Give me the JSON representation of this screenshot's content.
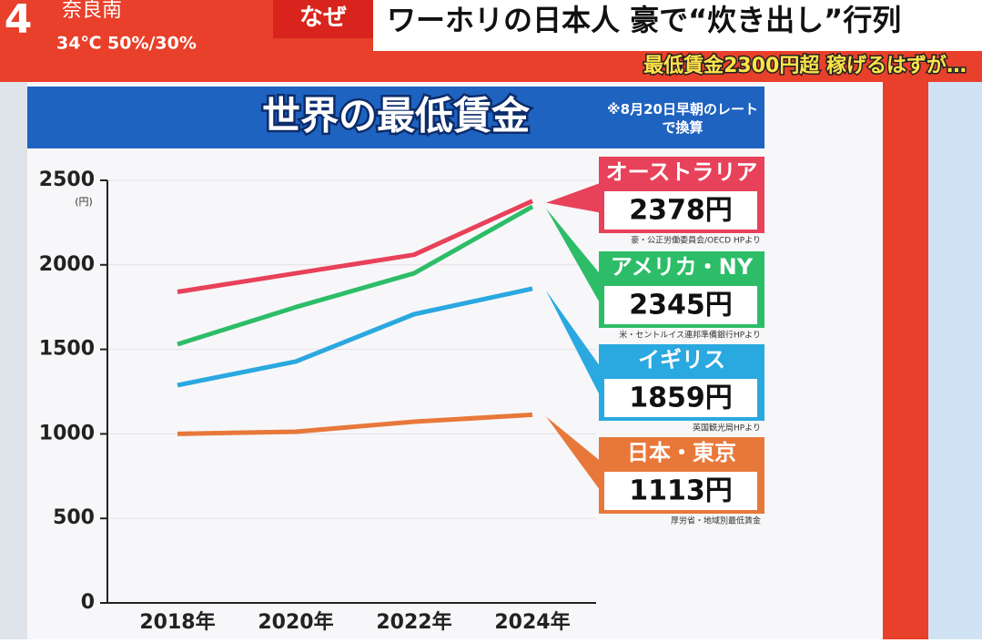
{
  "header": {
    "channel": "4",
    "location": "奈良南",
    "temperature": "34℃",
    "precipitation": "50%/30%",
    "tag": "なぜ",
    "headline": "ワーホリの日本人 豪で“炊き出し”行列",
    "subheadline": "最低賃金2300円超 稼げるはずが…"
  },
  "chart_data": {
    "type": "line",
    "title": "世界の最低賃金",
    "note": "※8月20日早朝のレートで換算",
    "y_unit": "(円)",
    "categories": [
      "2018年",
      "2020年",
      "2022年",
      "2024年"
    ],
    "series": [
      {
        "name": "オーストラリア",
        "color": "#e8415a",
        "values": [
          1840,
          1950,
          2060,
          2378
        ],
        "value_labels": [
          null,
          null,
          null,
          "2378円"
        ],
        "source": "豪・公正労働委員会/OECD HPより"
      },
      {
        "name": "アメリカ・NY",
        "color": "#2dbd68",
        "values": [
          1530,
          1750,
          1950,
          2345
        ],
        "value_labels": [
          null,
          null,
          null,
          "2345円"
        ],
        "source": "米・セントルイス連邦準備銀行HPより"
      },
      {
        "name": "イギリス",
        "color": "#2aa8e0",
        "values": [
          1288,
          1428,
          1708,
          1859
        ],
        "value_labels": [
          null,
          null,
          null,
          "1859円"
        ],
        "source": "英国観光局HPより"
      },
      {
        "name": "日本・東京",
        "color": "#e8783a",
        "values": [
          1000,
          1013,
          1072,
          1113
        ],
        "value_labels": [
          null,
          null,
          null,
          "1113円"
        ],
        "source": "厚労省・地域別最低賃金"
      }
    ],
    "ylim": [
      0,
      2500
    ],
    "yticks": [
      0,
      500,
      1000,
      1500,
      2000,
      2500
    ],
    "grid": true
  }
}
